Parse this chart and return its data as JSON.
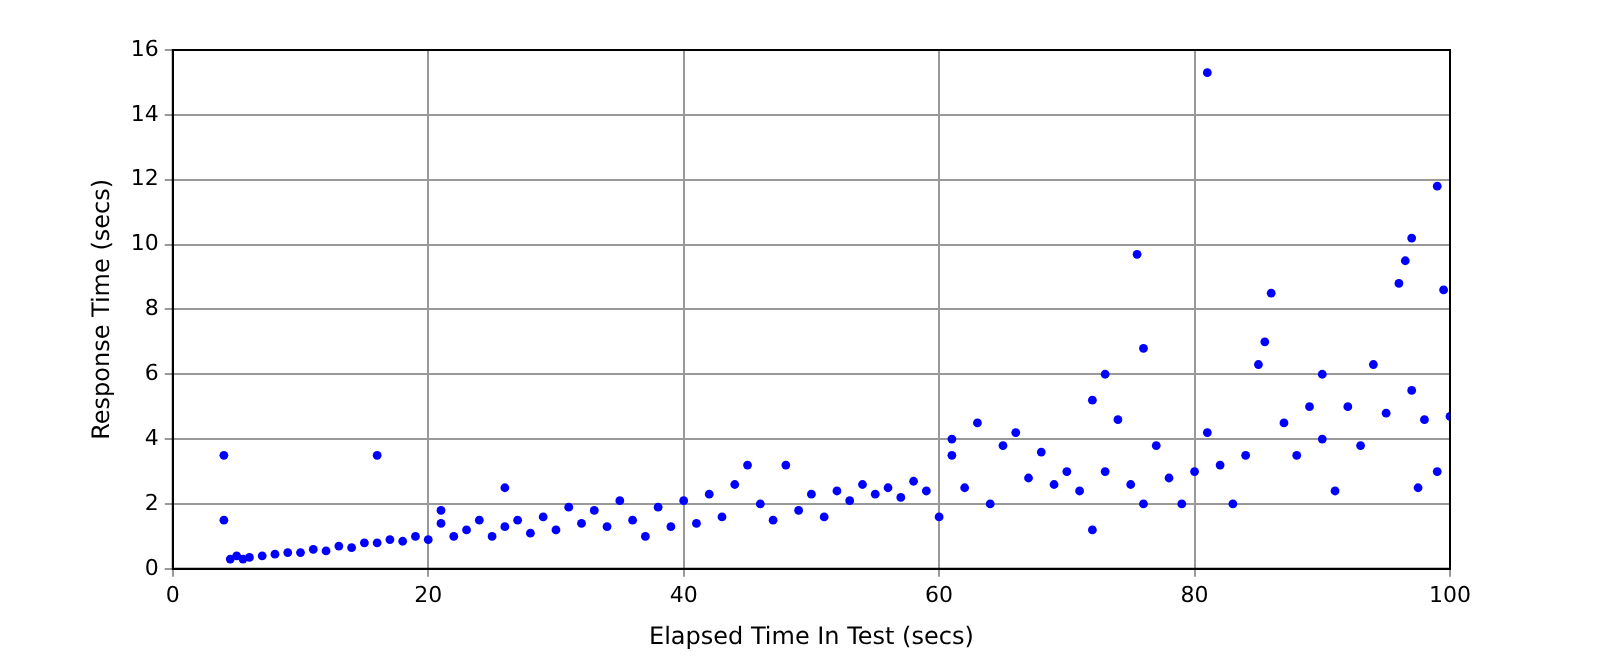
{
  "chart_data": {
    "type": "scatter",
    "xlabel": "Elapsed Time In Test (secs)",
    "ylabel": "Response Time (secs)",
    "xlim": [
      0,
      100
    ],
    "xticks": [
      0,
      20,
      40,
      60,
      80,
      100
    ],
    "ylim": [
      0,
      16
    ],
    "yticks": [
      0,
      2,
      4,
      6,
      8,
      10,
      12,
      14,
      16
    ],
    "grid": true,
    "marker": "circle",
    "series": [
      {
        "color": "#0000ff",
        "x": [
          4,
          4,
          4.5,
          5,
          5.5,
          6,
          7,
          8,
          9,
          10,
          11,
          12,
          13,
          14,
          15,
          16,
          16,
          17,
          18,
          19,
          20,
          21,
          21,
          22,
          23,
          24,
          25,
          26,
          26,
          27,
          28,
          29,
          30,
          31,
          32,
          33,
          34,
          35,
          36,
          37,
          38,
          39,
          40,
          41,
          42,
          43,
          44,
          45,
          46,
          47,
          48,
          49,
          50,
          51,
          52,
          53,
          54,
          55,
          56,
          57,
          58,
          59,
          60,
          61,
          61,
          62,
          63,
          64,
          65,
          66,
          67,
          68,
          69,
          70,
          71,
          72,
          72,
          73,
          73,
          74,
          75,
          75.5,
          76,
          76,
          77,
          78,
          79,
          80,
          81,
          81,
          82,
          83,
          84,
          85,
          85.5,
          86,
          87,
          88,
          89,
          90,
          90,
          91,
          92,
          93,
          94,
          95,
          96,
          96.5,
          97,
          97,
          97.5,
          98,
          99,
          99,
          99.5,
          100
        ],
        "values": [
          3.5,
          1.5,
          0.3,
          0.4,
          0.3,
          0.35,
          0.4,
          0.45,
          0.5,
          0.5,
          0.6,
          0.55,
          0.7,
          0.65,
          0.8,
          3.5,
          0.8,
          0.9,
          0.85,
          1.0,
          0.9,
          1.8,
          1.4,
          1.0,
          1.2,
          1.5,
          1.0,
          2.5,
          1.3,
          1.5,
          1.1,
          1.6,
          1.2,
          1.9,
          1.4,
          1.8,
          1.3,
          2.1,
          1.5,
          1.0,
          1.9,
          1.3,
          2.1,
          1.4,
          2.3,
          1.6,
          2.6,
          3.2,
          2.0,
          1.5,
          3.2,
          1.8,
          2.3,
          1.6,
          2.4,
          2.1,
          2.6,
          2.3,
          2.5,
          2.2,
          2.7,
          2.4,
          1.6,
          4.0,
          3.5,
          2.5,
          4.5,
          2.0,
          3.8,
          4.2,
          2.8,
          3.6,
          2.6,
          3.0,
          2.4,
          5.2,
          1.2,
          6.0,
          3.0,
          4.6,
          2.6,
          9.7,
          6.8,
          2.0,
          3.8,
          2.8,
          2.0,
          3.0,
          15.3,
          4.2,
          3.2,
          2.0,
          3.5,
          6.3,
          7.0,
          8.5,
          4.5,
          3.5,
          5.0,
          4.0,
          6.0,
          2.4,
          5.0,
          3.8,
          6.3,
          4.8,
          8.8,
          9.5,
          10.2,
          5.5,
          2.5,
          4.6,
          11.8,
          3.0,
          8.6,
          4.7
        ]
      }
    ]
  }
}
